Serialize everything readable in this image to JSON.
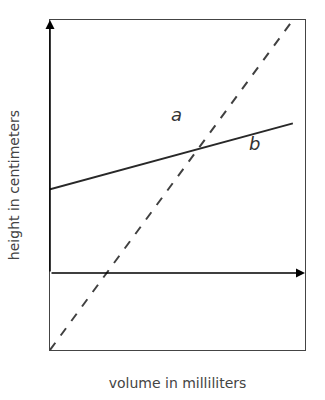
{
  "chart_data": {
    "type": "line",
    "xlabel": "volume in milliliters",
    "ylabel": "height in centimeters",
    "x": [
      0.0,
      1.0
    ],
    "series": [
      {
        "name": "a",
        "color": "#404040",
        "line_style": "dashed",
        "values": [
          -0.35,
          1.15
        ]
      },
      {
        "name": "b",
        "color": "#282828",
        "line_style": "solid",
        "values": [
          0.38,
          0.68
        ]
      }
    ],
    "annotations": [
      {
        "text": "a",
        "x": 0.52,
        "y": 0.72
      },
      {
        "text": "b",
        "x": 0.84,
        "y": 0.59
      }
    ],
    "xlim": [
      0,
      1.05
    ],
    "ylim": [
      -0.35,
      1.15
    ],
    "tick_labels": false,
    "grid": false
  }
}
